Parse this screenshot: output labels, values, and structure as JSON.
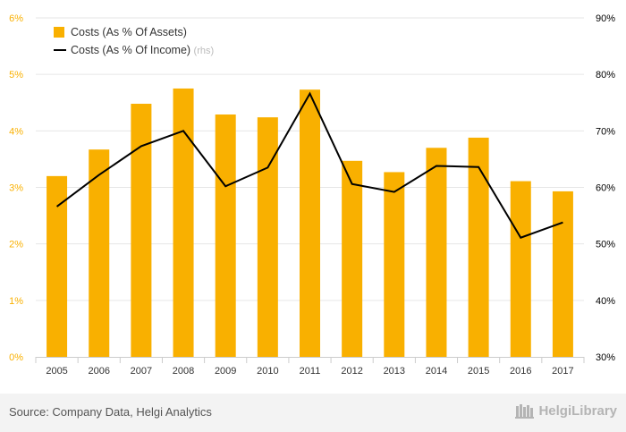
{
  "colors": {
    "bar": "#F9B000",
    "line": "#000000",
    "left_axis_text": "#F9B000",
    "right_axis_text": "#000000",
    "grid": "#e6e6e6",
    "footer_bg": "#f3f3f3"
  },
  "chart_data": {
    "type": "bar",
    "categories": [
      "2005",
      "2006",
      "2007",
      "2008",
      "2009",
      "2010",
      "2011",
      "2012",
      "2013",
      "2014",
      "2015",
      "2016",
      "2017"
    ],
    "series": [
      {
        "name": "Costs (As % Of Assets)",
        "type": "bar",
        "axis": "left",
        "values": [
          3.2,
          3.67,
          4.48,
          4.75,
          4.29,
          4.24,
          4.73,
          3.47,
          3.27,
          3.7,
          3.88,
          3.11,
          2.93
        ]
      },
      {
        "name": "Costs (As % Of Income)",
        "type": "line",
        "axis": "right",
        "values": [
          56.6,
          62.2,
          67.3,
          70.0,
          60.2,
          63.5,
          76.6,
          60.6,
          59.2,
          63.8,
          63.6,
          51.1,
          53.8
        ]
      }
    ],
    "legend": {
      "position": "top-left",
      "items": [
        {
          "label": "Costs (As % Of Assets)",
          "suffix": ""
        },
        {
          "label": "Costs (As % Of Income)",
          "suffix": "(rhs)"
        }
      ]
    },
    "y_left": {
      "ylim": [
        0,
        6
      ],
      "ticks": [
        "0%",
        "1%",
        "2%",
        "3%",
        "4%",
        "5%",
        "6%"
      ]
    },
    "y_right": {
      "ylim": [
        30,
        90
      ],
      "ticks": [
        "30%",
        "40%",
        "50%",
        "60%",
        "70%",
        "80%",
        "90%"
      ]
    },
    "grid": true
  },
  "footer": {
    "source": "Source: Company Data, Helgi Analytics",
    "logo_text": "HelgiLibrary"
  }
}
